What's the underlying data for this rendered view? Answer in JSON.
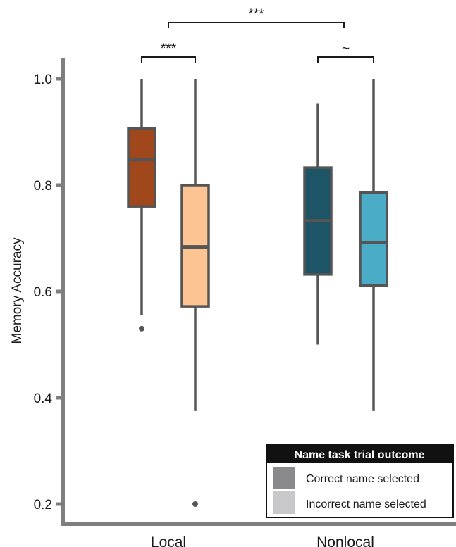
{
  "chart_data": {
    "type": "boxplot",
    "ylabel": "Memory Accuracy",
    "xlabel": "",
    "ylim": [
      0.18,
      1.05
    ],
    "yticks": [
      0.2,
      0.4,
      0.6,
      0.8,
      1.0
    ],
    "ytick_labels": [
      "0.2",
      "0.4",
      "0.6",
      "0.8",
      "1.0"
    ],
    "categories": [
      "Local",
      "Nonlocal"
    ],
    "legend": {
      "title": "Name task trial outcome",
      "position": "bottom-right",
      "entries": [
        {
          "label": "Correct name selected",
          "color": "#8a8a8e"
        },
        {
          "label": "Incorrect name selected",
          "color": "#c8c8ca"
        }
      ]
    },
    "boxes": [
      {
        "category": "Local",
        "outcome": "Correct name selected",
        "color": "#a0471c",
        "whisker_low": 0.555,
        "q1": 0.76,
        "median": 0.848,
        "q3": 0.907,
        "whisker_high": 1.0,
        "outliers": [
          0.53
        ]
      },
      {
        "category": "Local",
        "outcome": "Incorrect name selected",
        "color": "#fcc493",
        "whisker_low": 0.375,
        "q1": 0.572,
        "median": 0.684,
        "q3": 0.8,
        "whisker_high": 1.0,
        "outliers": [
          0.2
        ]
      },
      {
        "category": "Nonlocal",
        "outcome": "Correct name selected",
        "color": "#1e5566",
        "whisker_low": 0.5,
        "q1": 0.632,
        "median": 0.733,
        "q3": 0.833,
        "whisker_high": 0.953,
        "outliers": []
      },
      {
        "category": "Nonlocal",
        "outcome": "Incorrect name selected",
        "color": "#4aacc6",
        "whisker_low": 0.375,
        "q1": 0.611,
        "median": 0.692,
        "q3": 0.786,
        "whisker_high": 1.0,
        "outliers": []
      }
    ],
    "significance": [
      {
        "between": [
          "Local|Correct name selected",
          "Local|Incorrect name selected"
        ],
        "label": "***",
        "level": 1
      },
      {
        "between": [
          "Nonlocal|Correct name selected",
          "Nonlocal|Incorrect name selected"
        ],
        "label": "~",
        "level": 1
      },
      {
        "between": [
          "Local",
          "Nonlocal"
        ],
        "label": "***",
        "level": 2
      }
    ],
    "grid": false,
    "colors": {
      "axis": "#7f7f7f",
      "box_outline": "#555555",
      "legend_header_bg": "#111111"
    }
  }
}
